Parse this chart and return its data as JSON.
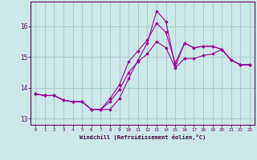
{
  "xlabel": "Windchill (Refroidissement éolien,°C)",
  "x": [
    0,
    1,
    2,
    3,
    4,
    5,
    6,
    7,
    8,
    9,
    10,
    11,
    12,
    13,
    14,
    15,
    16,
    17,
    18,
    19,
    20,
    21,
    22,
    23
  ],
  "y_line1": [
    13.8,
    13.75,
    13.75,
    13.6,
    13.55,
    13.55,
    13.3,
    13.3,
    13.3,
    13.65,
    14.3,
    14.9,
    15.45,
    16.5,
    16.15,
    14.7,
    15.45,
    15.3,
    15.35,
    15.35,
    15.25,
    14.9,
    14.75,
    14.75
  ],
  "y_line2": [
    13.8,
    13.75,
    13.75,
    13.6,
    13.55,
    13.55,
    13.3,
    13.3,
    13.65,
    14.1,
    14.85,
    15.2,
    15.55,
    16.1,
    15.8,
    14.8,
    15.45,
    15.3,
    15.35,
    15.35,
    15.25,
    14.9,
    14.75,
    14.75
  ],
  "y_line3": [
    13.8,
    13.75,
    13.75,
    13.6,
    13.55,
    13.55,
    13.3,
    13.3,
    13.55,
    13.95,
    14.5,
    14.85,
    15.1,
    15.5,
    15.3,
    14.65,
    14.95,
    14.95,
    15.05,
    15.1,
    15.25,
    14.9,
    14.75,
    14.75
  ],
  "line_color": "#990099",
  "bg_color": "#cce8e8",
  "grid_color": "#aacccc",
  "ylim": [
    12.8,
    16.8
  ],
  "yticks": [
    13,
    14,
    15,
    16
  ],
  "xlim": [
    -0.5,
    23.5
  ]
}
